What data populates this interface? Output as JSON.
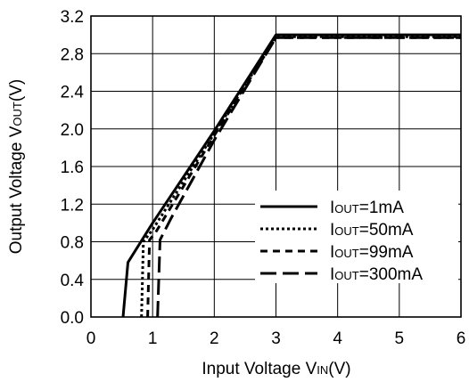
{
  "chart_data": {
    "type": "line",
    "title": "",
    "xlabel": {
      "prefix": "Input Voltage V",
      "sub": "IN",
      "suffix": "(V)"
    },
    "ylabel": {
      "prefix": "Output Voltage V",
      "sub": "OUT",
      "suffix": "(V)"
    },
    "xlim": [
      0,
      6
    ],
    "ylim": [
      0.0,
      3.2
    ],
    "x_ticks": [
      "0",
      "1",
      "2",
      "3",
      "4",
      "5",
      "6"
    ],
    "y_ticks": [
      "0.0",
      "0.4",
      "0.8",
      "1.2",
      "1.6",
      "2.0",
      "2.4",
      "2.8",
      "3.2"
    ],
    "grid": true,
    "legend_position": "lower-right",
    "series": [
      {
        "name_main": "I",
        "name_sub": "OUT",
        "name_rest": "=1mA",
        "dash": "solid",
        "points": [
          [
            0.52,
            0.0
          ],
          [
            0.6,
            0.58
          ],
          [
            1.0,
            1.0
          ],
          [
            2.0,
            1.98
          ],
          [
            3.0,
            3.0
          ],
          [
            6.0,
            3.0
          ]
        ]
      },
      {
        "name_main": "I",
        "name_sub": "OUT",
        "name_rest": "=50mA",
        "dash": "dotted",
        "points": [
          [
            0.82,
            0.0
          ],
          [
            0.85,
            0.8
          ],
          [
            1.0,
            0.93
          ],
          [
            2.0,
            1.95
          ],
          [
            3.0,
            2.98
          ],
          [
            6.0,
            2.98
          ]
        ]
      },
      {
        "name_main": "I",
        "name_sub": "OUT",
        "name_rest": "=99mA",
        "dash": "dashed",
        "points": [
          [
            0.92,
            0.0
          ],
          [
            0.95,
            0.82
          ],
          [
            1.05,
            0.9
          ],
          [
            2.0,
            1.93
          ],
          [
            3.0,
            2.97
          ],
          [
            6.0,
            2.97
          ]
        ]
      },
      {
        "name_main": "I",
        "name_sub": "OUT",
        "name_rest": "=300mA",
        "dash": "longdash",
        "points": [
          [
            1.08,
            0.0
          ],
          [
            1.12,
            0.82
          ],
          [
            1.3,
            1.05
          ],
          [
            2.0,
            1.88
          ],
          [
            3.0,
            2.97
          ],
          [
            6.0,
            2.97
          ]
        ]
      }
    ]
  }
}
